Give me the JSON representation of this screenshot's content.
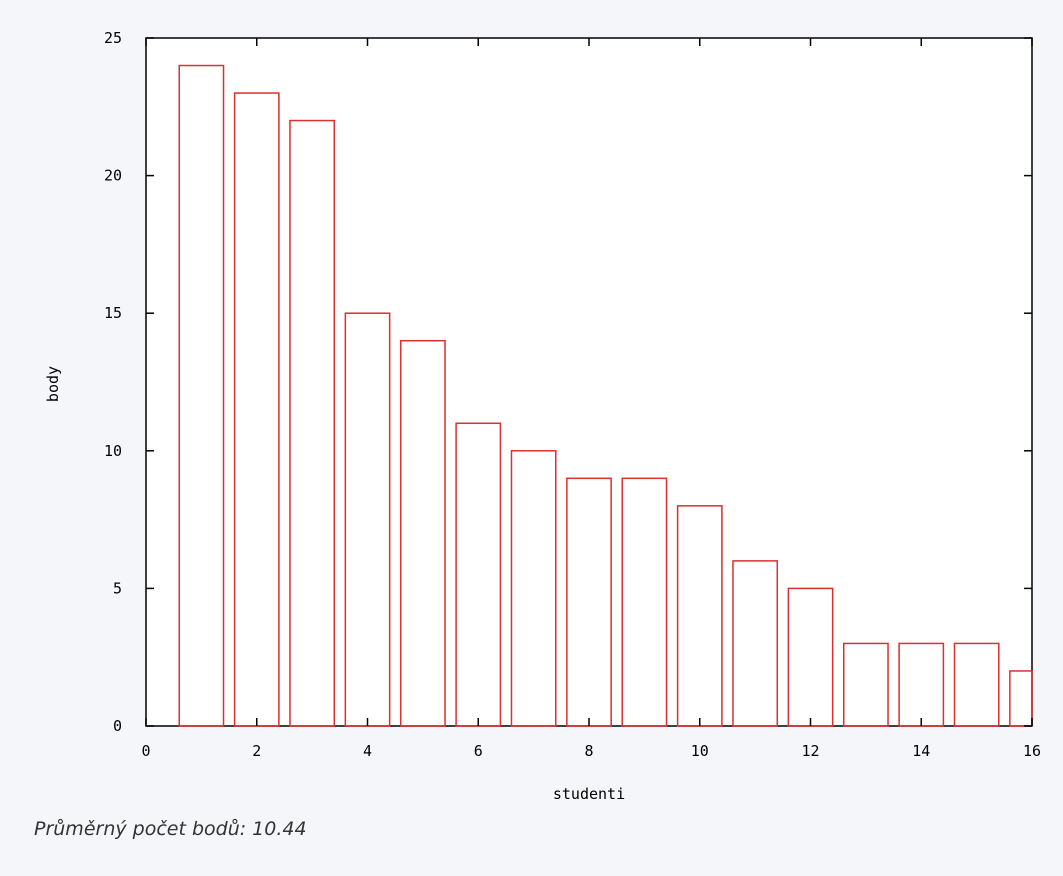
{
  "chart_data": {
    "type": "bar",
    "x": [
      1,
      2,
      3,
      4,
      5,
      6,
      7,
      8,
      9,
      10,
      11,
      12,
      13,
      14,
      15,
      16
    ],
    "values": [
      24,
      23,
      22,
      15,
      14,
      11,
      10,
      9,
      9,
      8,
      6,
      5,
      3,
      3,
      3,
      2
    ],
    "xlabel": "studenti",
    "ylabel": "body",
    "xlim": [
      0,
      16
    ],
    "ylim": [
      0,
      25
    ],
    "xticks": [
      "0",
      "2",
      "4",
      "6",
      "8",
      "10",
      "12",
      "14",
      "16"
    ],
    "yticks": [
      "0",
      "5",
      "10",
      "15",
      "20",
      "25"
    ],
    "bar_color": "#d93030",
    "grid": false
  },
  "caption": "Průměrný počet bodů: 10.44"
}
